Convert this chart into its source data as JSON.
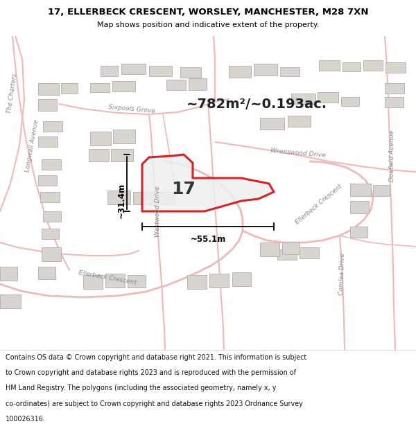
{
  "title_line1": "17, ELLERBECK CRESCENT, WORSLEY, MANCHESTER, M28 7XN",
  "title_line2": "Map shows position and indicative extent of the property.",
  "area_text": "~782m²/~0.193ac.",
  "property_number": "17",
  "dim_width": "~55.1m",
  "dim_height": "~31.4m",
  "footer_lines": [
    "Contains OS data © Crown copyright and database right 2021. This information is subject",
    "to Crown copyright and database rights 2023 and is reproduced with the permission of",
    "HM Land Registry. The polygons (including the associated geometry, namely x, y",
    "co-ordinates) are subject to Crown copyright and database rights 2023 Ordnance Survey",
    "100026316."
  ],
  "map_bg": "#f5f3f0",
  "road_color": "#f0b8b8",
  "road_lw": 1.2,
  "property_color": "#cc0000",
  "property_lw": 2.0,
  "building_fill": "#d8d5d0",
  "building_stroke": "#b8b5b0",
  "footer_bg": "#ffffff",
  "title_bg": "#ffffff",
  "label_color": "#888888",
  "label_fontsize": 6.5
}
